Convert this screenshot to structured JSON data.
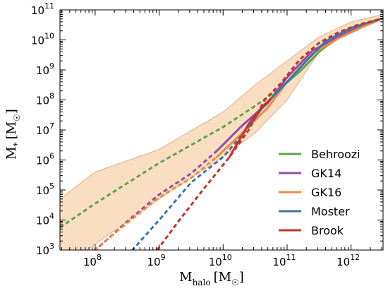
{
  "chart_data": {
    "type": "line",
    "xlabel": {
      "main": "M",
      "sub": "halo",
      "unit": "[M",
      "unit_sub": "☉",
      "unit_close": "]"
    },
    "ylabel": {
      "main": "M",
      "sub": "*",
      "unit": "[M",
      "unit_sub": "☉",
      "unit_close": "]"
    },
    "xscale": "log",
    "yscale": "log",
    "xlim_log10": [
      7.45,
      12.5
    ],
    "ylim_log10": [
      3,
      11
    ],
    "x_ticks": [
      {
        "log10": 8,
        "base": "10",
        "exp": "8"
      },
      {
        "log10": 9,
        "base": "10",
        "exp": "9"
      },
      {
        "log10": 10,
        "base": "10",
        "exp": "10"
      },
      {
        "log10": 11,
        "base": "10",
        "exp": "11"
      },
      {
        "log10": 12,
        "base": "10",
        "exp": "12"
      }
    ],
    "y_ticks": [
      {
        "log10": 3,
        "base": "10",
        "exp": "3"
      },
      {
        "log10": 4,
        "base": "10",
        "exp": "4"
      },
      {
        "log10": 5,
        "base": "10",
        "exp": "5"
      },
      {
        "log10": 6,
        "base": "10",
        "exp": "6"
      },
      {
        "log10": 7,
        "base": "10",
        "exp": "7"
      },
      {
        "log10": 8,
        "base": "10",
        "exp": "8"
      },
      {
        "log10": 9,
        "base": "10",
        "exp": "9"
      },
      {
        "log10": 10,
        "base": "10",
        "exp": "10"
      },
      {
        "log10": 11,
        "base": "10",
        "exp": "11"
      }
    ],
    "grid": false,
    "legend_position": "lower-right",
    "band": {
      "color": "#f5c28f",
      "upper_log10": [
        [
          7.45,
          4.7
        ],
        [
          8.0,
          5.6
        ],
        [
          9.0,
          6.35
        ],
        [
          10.0,
          7.6
        ],
        [
          10.5,
          8.5
        ],
        [
          11.0,
          9.3
        ],
        [
          11.5,
          10.1
        ],
        [
          12.0,
          10.6
        ],
        [
          12.5,
          10.85
        ]
      ],
      "lower_log10": [
        [
          7.45,
          2.4
        ],
        [
          8.0,
          3.2
        ],
        [
          9.0,
          4.7
        ],
        [
          10.0,
          6.1
        ],
        [
          10.5,
          6.9
        ],
        [
          11.0,
          8.0
        ],
        [
          11.5,
          9.6
        ],
        [
          12.0,
          10.3
        ],
        [
          12.5,
          10.7
        ]
      ]
    },
    "series": [
      {
        "name": "Behroozi",
        "color": "#5fa34b",
        "dashed_log10": [
          [
            7.45,
            3.75
          ],
          [
            8.0,
            4.55
          ],
          [
            9.0,
            5.9
          ],
          [
            10.0,
            7.1
          ],
          [
            10.5,
            7.8
          ],
          [
            10.9,
            8.4
          ]
        ],
        "solid_log10": [
          [
            10.9,
            8.4
          ],
          [
            11.2,
            8.95
          ],
          [
            11.5,
            9.6
          ],
          [
            11.8,
            10.1
          ],
          [
            12.1,
            10.45
          ],
          [
            12.5,
            10.72
          ]
        ]
      },
      {
        "name": "GK14",
        "color": "#8e4fa5",
        "dashed_log10": [
          [
            7.9,
            2.8
          ],
          [
            8.5,
            3.95
          ],
          [
            9.0,
            4.85
          ],
          [
            9.5,
            5.55
          ],
          [
            9.9,
            6.3
          ]
        ],
        "solid_log10": [
          [
            9.9,
            6.3
          ],
          [
            10.3,
            7.15
          ],
          [
            10.7,
            7.9
          ],
          [
            11.0,
            8.75
          ],
          [
            11.4,
            9.65
          ],
          [
            11.8,
            10.1
          ],
          [
            12.2,
            10.5
          ],
          [
            12.5,
            10.72
          ]
        ]
      },
      {
        "name": "GK16",
        "color": "#f28b3b",
        "dashed_log10": [
          [
            7.9,
            2.85
          ],
          [
            8.5,
            3.9
          ],
          [
            9.0,
            4.75
          ],
          [
            9.5,
            5.4
          ],
          [
            9.9,
            6.1
          ]
        ],
        "solid_log10": [
          [
            9.9,
            6.1
          ],
          [
            10.3,
            6.9
          ],
          [
            10.7,
            7.75
          ],
          [
            11.0,
            8.6
          ],
          [
            11.4,
            9.55
          ],
          [
            11.8,
            10.05
          ],
          [
            12.2,
            10.45
          ],
          [
            12.5,
            10.72
          ]
        ]
      },
      {
        "name": "Moster",
        "color": "#3b75af",
        "dashed_log10": [
          [
            8.5,
            2.8
          ],
          [
            9.0,
            4.0
          ],
          [
            9.5,
            5.25
          ],
          [
            10.0,
            6.1
          ],
          [
            10.4,
            7.1
          ]
        ],
        "solid_log10": [
          [
            10.4,
            7.1
          ],
          [
            10.6,
            7.7
          ],
          [
            10.8,
            8.15
          ],
          [
            11.0,
            8.6
          ],
          [
            11.3,
            9.3
          ],
          [
            11.6,
            9.95
          ],
          [
            12.0,
            10.4
          ],
          [
            12.5,
            10.72
          ]
        ]
      },
      {
        "name": "Brook",
        "color": "#c8312b",
        "dashed_log10": [
          [
            8.9,
            2.8
          ],
          [
            9.3,
            3.95
          ],
          [
            9.7,
            5.05
          ],
          [
            10.1,
            6.1
          ],
          [
            10.4,
            7.0
          ],
          [
            10.65,
            8.0
          ],
          [
            10.9,
            8.55
          ],
          [
            11.2,
            9.35
          ],
          [
            11.5,
            9.9
          ],
          [
            11.8,
            10.25
          ],
          [
            12.1,
            10.5
          ],
          [
            12.5,
            10.72
          ]
        ],
        "solid_log10": [
          [
            10.1,
            6.1
          ],
          [
            10.4,
            7.2
          ],
          [
            10.6,
            7.75
          ],
          [
            10.75,
            8.05
          ]
        ]
      }
    ]
  }
}
